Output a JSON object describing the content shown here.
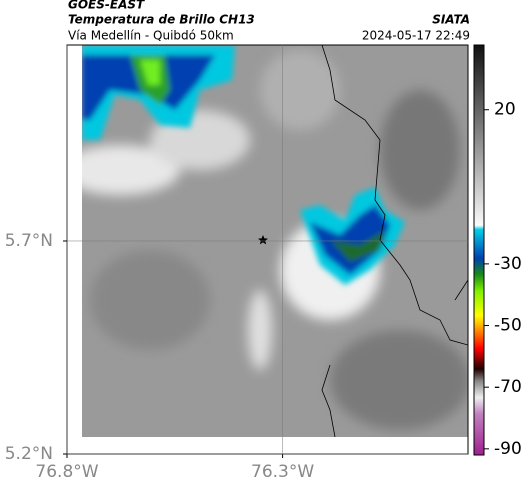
{
  "header": {
    "satellite": "GOES-EAST",
    "title": "Temperatura de Brillo CH13",
    "subtitle": "Vía Medellín - Quibdó 50km",
    "source": "SIATA",
    "timestamp": "2024-05-17 22:49"
  },
  "map": {
    "xlim": [
      -76.8,
      -75.87
    ],
    "ylim": [
      5.2,
      6.16
    ],
    "xticks": [
      {
        "value": -76.8,
        "label": "76.8°W"
      },
      {
        "value": -76.3,
        "label": "76.3°W"
      }
    ],
    "yticks": [
      {
        "value": 5.2,
        "label": "5.2°N"
      },
      {
        "value": 5.7,
        "label": "5.7°N"
      }
    ],
    "grid": true
  },
  "colorbar": {
    "lim": [
      -92,
      41
    ],
    "ticks": [
      20,
      -30,
      -50,
      -70,
      -90
    ]
  }
}
